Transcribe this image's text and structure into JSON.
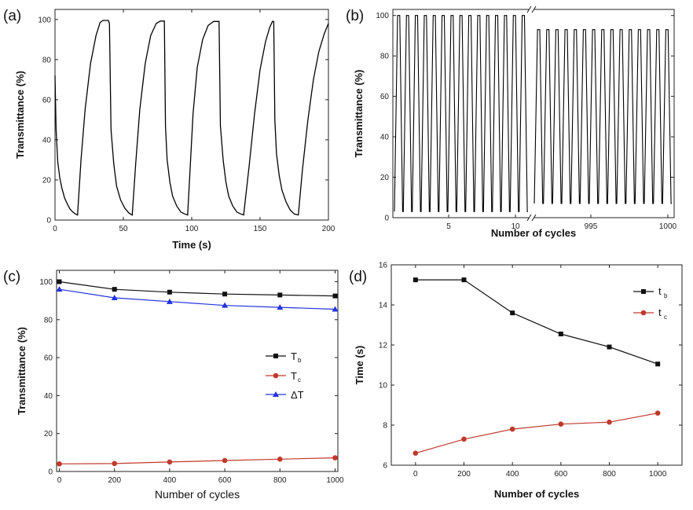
{
  "chart_data": [
    {
      "panel_label": "(a)",
      "type": "line",
      "xlabel": "Time (s)",
      "ylabel": "Transmittance (%)",
      "xlim": [
        0,
        200
      ],
      "ylim": [
        0,
        105
      ],
      "xticks": [
        "0",
        "50",
        "100",
        "150",
        "200"
      ],
      "yticks": [
        "0",
        "20",
        "40",
        "60",
        "80",
        "100"
      ],
      "series": [
        {
          "color": "#000000",
          "x": [
            0,
            0.8,
            2,
            3.5,
            5,
            7,
            9,
            11,
            13,
            15,
            16.5,
            19,
            22,
            26,
            30,
            33,
            35,
            39,
            39.8,
            41,
            43,
            45,
            48,
            51,
            54,
            56.5,
            59,
            62,
            66,
            70,
            74,
            77,
            78.6,
            80,
            80.8,
            82,
            84,
            86,
            89,
            92,
            95,
            97,
            98.8,
            101,
            104,
            108,
            112,
            116,
            119,
            120,
            121,
            123,
            125,
            127,
            130,
            133,
            136,
            138,
            142,
            146,
            150,
            154,
            157,
            159,
            160,
            160.8,
            162,
            164,
            166,
            169,
            172,
            175,
            178,
            181,
            185,
            189,
            193,
            197,
            200
          ],
          "y": [
            72,
            45,
            29,
            21,
            16,
            11,
            8,
            5.5,
            4,
            3,
            2.5,
            30,
            55,
            78,
            92,
            98.5,
            99.5,
            99.5,
            98,
            45,
            28,
            17,
            10,
            6,
            3.5,
            2.5,
            28,
            55,
            78,
            92,
            98,
            99.2,
            99.2,
            99.2,
            47,
            30,
            19,
            12,
            7,
            4,
            3,
            2.5,
            25,
            53,
            76,
            90,
            97,
            99,
            99,
            99,
            47,
            30,
            19,
            12,
            7,
            4,
            3,
            2.5,
            27,
            53,
            75,
            89,
            96,
            99,
            99,
            50,
            33,
            22,
            15,
            9,
            5,
            3,
            2.5,
            25,
            50,
            70,
            84,
            93,
            98
          ]
        }
      ]
    },
    {
      "panel_label": "(b)",
      "type": "line",
      "xlabel": "Number of cycles",
      "ylabel": "Transmittance (%)",
      "ylim": [
        0,
        103
      ],
      "xticks": [
        "5",
        "10",
        "995",
        "1000"
      ],
      "yticks": [
        "0",
        "20",
        "40",
        "60",
        "80",
        "100"
      ],
      "axis_break": true,
      "segments": [
        {
          "cycles": [
            1,
            10
          ],
          "cycle_count": 15,
          "max": 100,
          "min": 3
        },
        {
          "cycles": [
            991,
            1000
          ],
          "cycle_count": 15,
          "max": 93,
          "min": 7
        }
      ]
    },
    {
      "panel_label": "(c)",
      "type": "line",
      "xlabel": "Number of cycles",
      "ylabel": "Transmittance (%)",
      "xlim": [
        -10,
        1010
      ],
      "ylim": [
        0,
        106
      ],
      "xticks": [
        "0",
        "200",
        "400",
        "600",
        "800",
        "1000"
      ],
      "yticks": [
        "0",
        "20",
        "40",
        "60",
        "80",
        "100"
      ],
      "legend_position": "right",
      "x": [
        0,
        200,
        400,
        600,
        800,
        1000
      ],
      "series": [
        {
          "name": "T",
          "sub": "b",
          "marker": "square",
          "color": "#111111",
          "values": [
            100,
            96,
            94.5,
            93.5,
            93,
            92.5
          ]
        },
        {
          "name": "T",
          "sub": "c",
          "marker": "circle",
          "color": "#c0392b",
          "values": [
            4,
            4.2,
            5,
            5.8,
            6.5,
            7.2
          ]
        },
        {
          "name": "ΔT",
          "sub": "",
          "marker": "triangle",
          "color": "#2233dd",
          "values": [
            96,
            91.5,
            89.5,
            87.5,
            86.5,
            85.5
          ]
        }
      ]
    },
    {
      "panel_label": "(d)",
      "type": "line",
      "xlabel": "Number of cycles",
      "ylabel": "Time (s)",
      "xlim": [
        -100,
        1100
      ],
      "ylim": [
        6,
        16
      ],
      "xticks": [
        "0",
        "200",
        "400",
        "600",
        "800",
        "1000"
      ],
      "yticks": [
        "6",
        "8",
        "10",
        "12",
        "14",
        "16"
      ],
      "legend_position": "top-right",
      "x": [
        0,
        200,
        400,
        600,
        800,
        1000
      ],
      "series": [
        {
          "name": "t",
          "sub": "b",
          "marker": "square",
          "color": "#111111",
          "values": [
            15.25,
            15.25,
            13.6,
            12.55,
            11.9,
            11.05
          ]
        },
        {
          "name": "t",
          "sub": "c",
          "marker": "circle",
          "color": "#c0392b",
          "values": [
            6.6,
            7.3,
            7.8,
            8.05,
            8.15,
            8.6
          ]
        }
      ]
    }
  ]
}
